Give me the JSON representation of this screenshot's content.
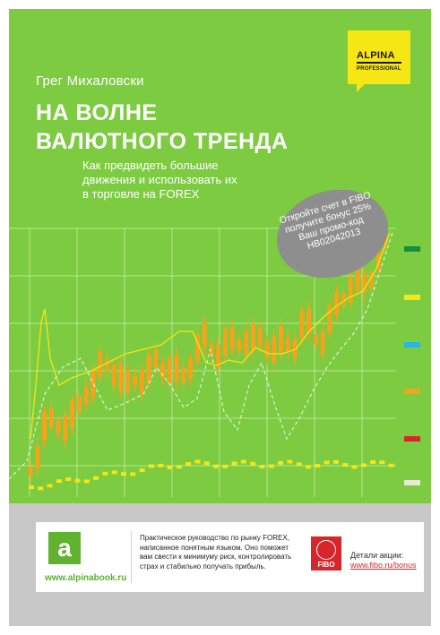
{
  "book": {
    "author": "Грег Михаловски",
    "title_lines": [
      "НА ВОЛНЕ",
      "ВАЛЮТНОГО ТРЕНДА"
    ],
    "subtitle_lines": [
      "Как предвидеть большие",
      "движения и использовать их",
      "в торговле на FOREX"
    ]
  },
  "publisher": {
    "name": "ALPINA",
    "sub": "PROFESSIONAL"
  },
  "promo": {
    "lines": [
      "Откройте счет в FIBO",
      "получите бонус 25%",
      "Ваш промо-код",
      "HB02042013"
    ]
  },
  "footer": {
    "site": "www.alpinabook.ru",
    "description_lines": [
      "Практическое руководство по рынку FOREX,",
      "написанное понятным языком. Оно поможет",
      "вам свести к минимуму риск, контролировать",
      "страх и стабильно получать прибыль."
    ],
    "partner_logo": "FIBO",
    "details_label": "Детали акции:",
    "details_link": "www.fibo.ru/bonus"
  },
  "colors": {
    "cover_green": "#7ccb41",
    "candle_orange": "#f7a21b",
    "yellow_line": "#f6e614",
    "swatches": [
      "#148f3f",
      "#f6e614",
      "#29b6e5",
      "#f7a21b",
      "#d7262b",
      "#e8e8d8"
    ]
  },
  "icons": {
    "publisher": "alpina-logo",
    "site": "alpina-a-logo",
    "partner": "fibo-globe-logo"
  }
}
